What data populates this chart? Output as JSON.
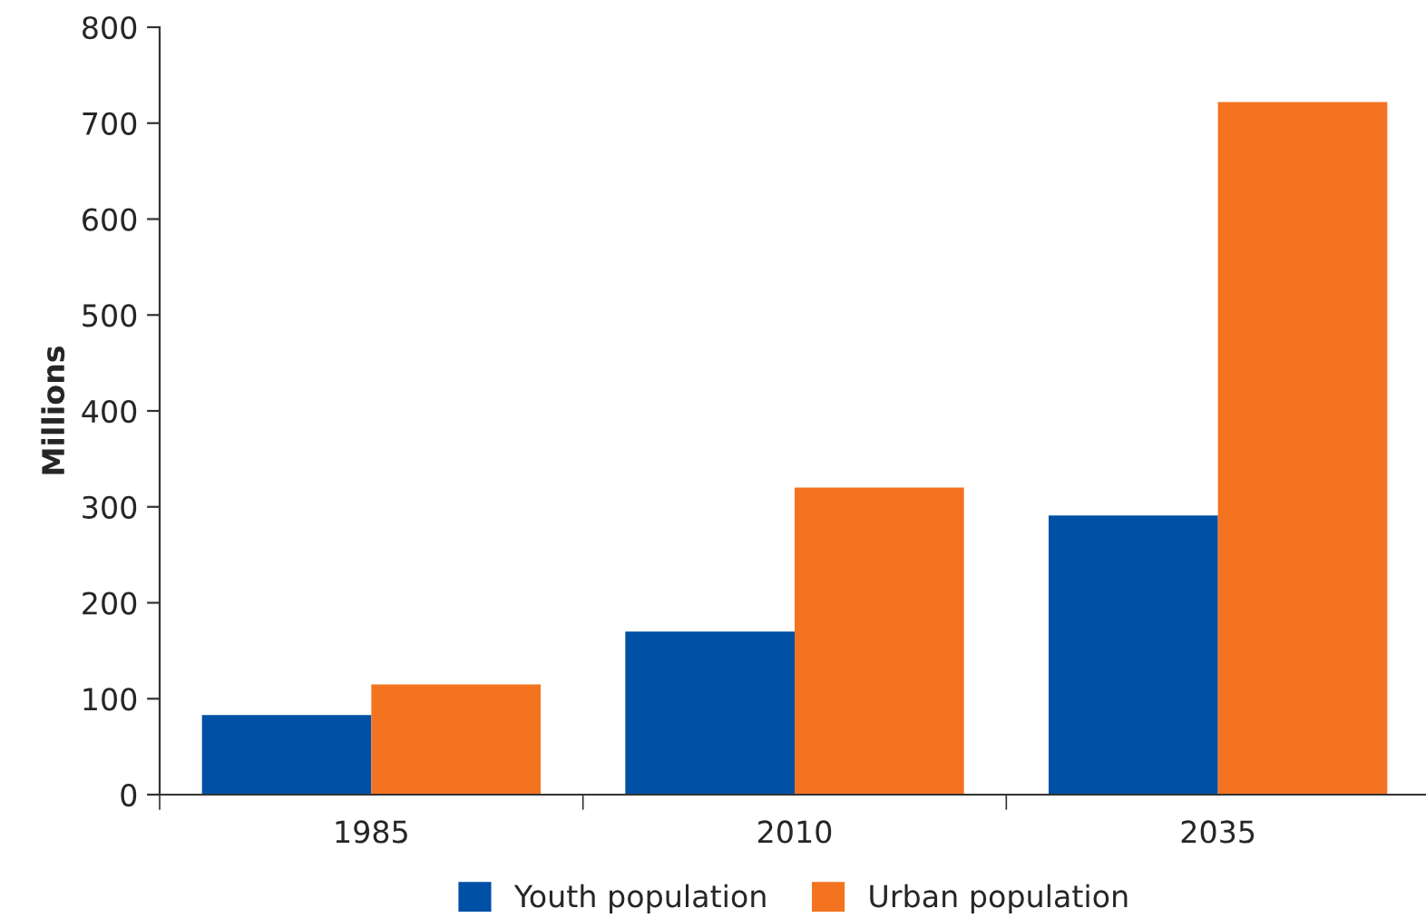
{
  "chart_data": {
    "type": "bar",
    "ylabel": "Millions",
    "categories": [
      "1985",
      "2010",
      "2035"
    ],
    "series": [
      {
        "name": "Youth population",
        "color": "#0050a5",
        "values": [
          83,
          170,
          291
        ]
      },
      {
        "name": "Urban population",
        "color": "#f47321",
        "values": [
          115,
          320,
          722
        ]
      }
    ],
    "ylim": [
      0,
      800
    ],
    "yticks": [
      0,
      100,
      200,
      300,
      400,
      500,
      600,
      700,
      800
    ],
    "grid": false,
    "legend": "bottom"
  }
}
